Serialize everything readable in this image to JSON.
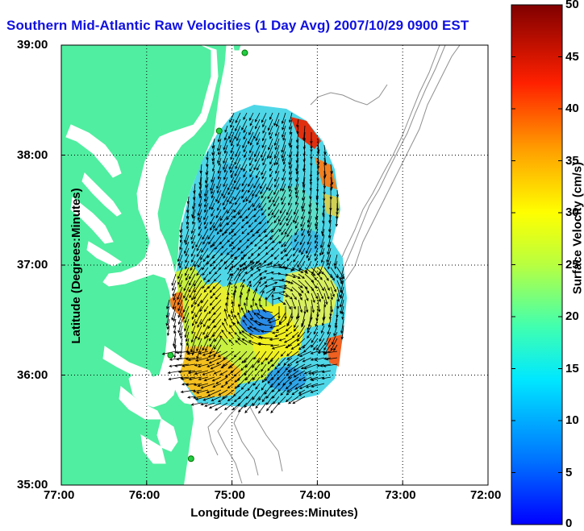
{
  "title": "Southern Mid-Atlantic Raw Velocities (1 Day Avg) 2007/10/29 0900 EST",
  "axes": {
    "xlabel": "Longitude (Degrees:Minutes)",
    "ylabel": "Latitude (Degrees:Minutes)",
    "xticks": [
      "77:00",
      "76:00",
      "75:00",
      "74:00",
      "73:00",
      "72:00"
    ],
    "yticks": [
      "39:00",
      "38:00",
      "37:00",
      "36:00",
      "35:00"
    ],
    "xlim": [
      -77,
      -72
    ],
    "ylim": [
      35,
      39
    ],
    "grid": "dotted"
  },
  "colorbar": {
    "label": "Surface Velocity (cm/s)",
    "ticks": [
      "50",
      "45",
      "40",
      "35",
      "30",
      "25",
      "20",
      "15",
      "10",
      "5",
      "0"
    ],
    "range": [
      0,
      50
    ],
    "colormap": "jet"
  },
  "colors": {
    "land": "#50eea0",
    "title": "#1010e0",
    "site": "#22cc44",
    "arrow": "#000000",
    "bathymetry": "#909090"
  },
  "sites": [
    {
      "lon": -74.85,
      "lat": 38.93
    },
    {
      "lon": -75.15,
      "lat": 38.22
    },
    {
      "lon": -75.72,
      "lat": 36.18
    },
    {
      "lon": -75.48,
      "lat": 35.24
    }
  ]
}
